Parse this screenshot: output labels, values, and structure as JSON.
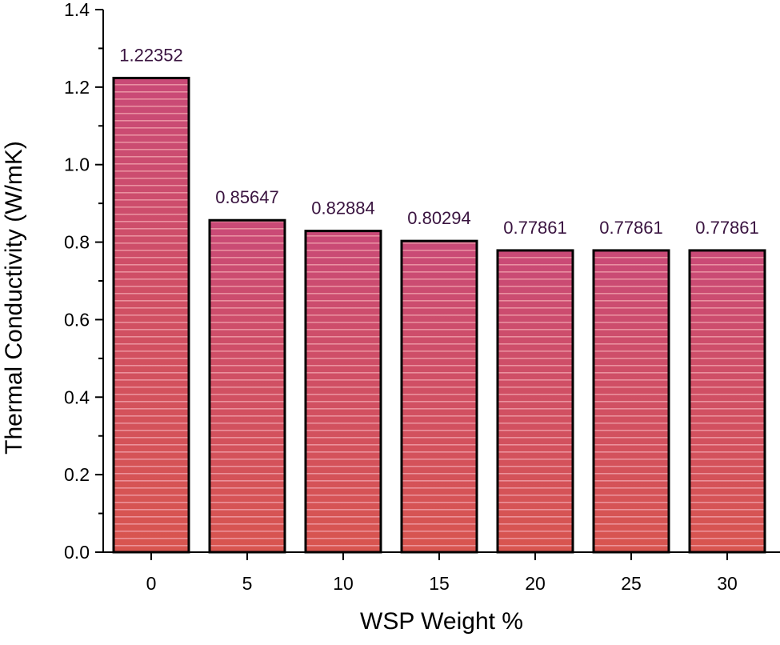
{
  "chart_data": {
    "type": "bar",
    "title": "",
    "xlabel": "WSP Weight %",
    "ylabel": "Thermal Conductivity (W/mK)",
    "categories": [
      "0",
      "5",
      "10",
      "15",
      "20",
      "25",
      "30"
    ],
    "values": [
      1.22352,
      0.85647,
      0.82884,
      0.80294,
      0.77861,
      0.77861,
      0.77861
    ],
    "data_labels": [
      "1.22352",
      "0.85647",
      "0.82884",
      "0.80294",
      "0.77861",
      "0.77861",
      "0.77861"
    ],
    "ylim": [
      0,
      1.4
    ],
    "yticks": [
      "0.0",
      "0.2",
      "0.4",
      "0.6",
      "0.8",
      "1.0",
      "1.2",
      "1.4"
    ],
    "grid": false,
    "legend": "none"
  },
  "colors": {
    "bar_fill_top": "#c94a77",
    "bar_fill_bottom": "#d8554f",
    "bar_stripe": "#f2a7b0",
    "bar_outline": "#000000",
    "data_label": "#3a1440",
    "axis": "#000000"
  }
}
